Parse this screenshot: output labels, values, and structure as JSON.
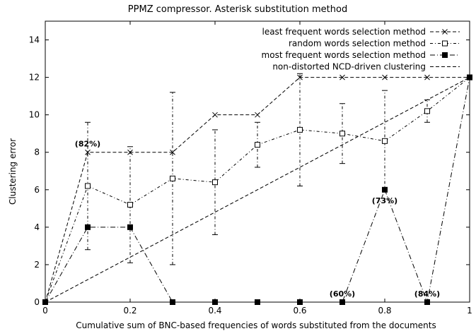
{
  "chart_data": {
    "type": "line",
    "title": "PPMZ compressor. Asterisk substitution method",
    "xlabel": "Cumulative sum of BNC-based frequencies of words substituted from the documents",
    "ylabel": "Clustering error",
    "xlim": [
      0,
      1
    ],
    "ylim": [
      0,
      15
    ],
    "x_ticks": [
      "0",
      "0.2",
      "0.4",
      "0.6",
      "0.8",
      "1"
    ],
    "y_ticks": [
      "0",
      "2",
      "4",
      "6",
      "8",
      "10",
      "12",
      "14"
    ],
    "x_tick_values": [
      0,
      0.2,
      0.4,
      0.6,
      0.8,
      1
    ],
    "y_tick_values": [
      0,
      2,
      4,
      6,
      8,
      10,
      12,
      14
    ],
    "grid": false,
    "legend_position": "top-right",
    "series": [
      {
        "name": "least frequent words selection method",
        "marker": "x",
        "line": "dashed",
        "x": [
          0,
          0.1,
          0.2,
          0.3,
          0.4,
          0.5,
          0.6,
          0.7,
          0.8,
          0.9,
          1.0
        ],
        "y": [
          0,
          8,
          8,
          8,
          10,
          10,
          12,
          12,
          12,
          12,
          12
        ]
      },
      {
        "name": "random words selection method",
        "marker": "open-square",
        "line": "dotted-dash",
        "x": [
          0,
          0.1,
          0.2,
          0.3,
          0.4,
          0.5,
          0.6,
          0.7,
          0.8,
          0.9,
          1.0
        ],
        "y": [
          0,
          6.2,
          5.2,
          6.6,
          6.4,
          8.4,
          9.2,
          9.0,
          8.6,
          10.2,
          12
        ],
        "error_low": [
          0,
          2.8,
          2.1,
          2.0,
          3.6,
          7.2,
          6.2,
          7.4,
          5.9,
          9.6,
          12
        ],
        "error_high": [
          0,
          9.6,
          8.3,
          11.2,
          9.2,
          9.6,
          12.2,
          10.6,
          11.3,
          10.8,
          12
        ]
      },
      {
        "name": "most frequent words selection method",
        "marker": "filled-square",
        "line": "dash-dot",
        "x": [
          0,
          0.1,
          0.2,
          0.3,
          0.4,
          0.5,
          0.6,
          0.7,
          0.8,
          0.9,
          1.0
        ],
        "y": [
          0,
          4,
          4,
          0,
          0,
          0,
          0,
          0,
          6,
          0,
          12
        ]
      },
      {
        "name": "non-distorted NCD-driven clustering",
        "marker": "none",
        "line": "dashed",
        "x": [
          0,
          1
        ],
        "y": [
          0,
          12
        ]
      }
    ],
    "annotations": [
      {
        "text": "(82%)",
        "x": 0.1,
        "y": 8,
        "anchor": "above"
      },
      {
        "text": "(73%)",
        "x": 0.8,
        "y": 6,
        "anchor": "below"
      },
      {
        "text": "(60%)",
        "x": 0.7,
        "y": 0,
        "anchor": "above"
      },
      {
        "text": "(84%)",
        "x": 0.9,
        "y": 0,
        "anchor": "above"
      }
    ]
  }
}
